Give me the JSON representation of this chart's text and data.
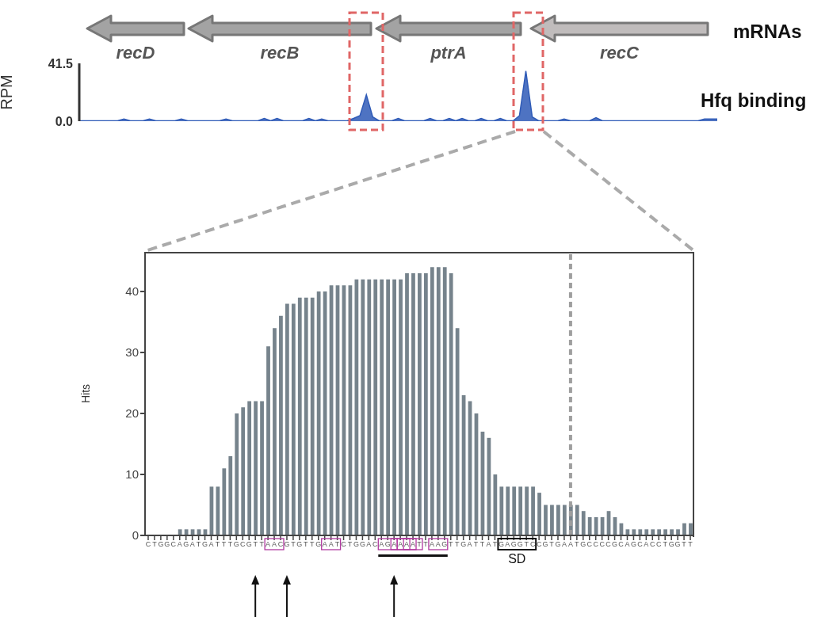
{
  "chart_data": [
    {
      "type": "area",
      "ylabel": "RPM",
      "ylim": [
        0,
        41.5
      ],
      "yticks": [
        {
          "value": 0,
          "label": "0.0"
        },
        41.5
      ],
      "tick_labels": "y",
      "categories": [
        null,
        null,
        null,
        null,
        null,
        null,
        null,
        null,
        null,
        null,
        null,
        null,
        null,
        null,
        null,
        null,
        null,
        null,
        null,
        null,
        null,
        null,
        null,
        null,
        null,
        null,
        null,
        null,
        null,
        null,
        null,
        null,
        null,
        null,
        null,
        null,
        null,
        null,
        null,
        null,
        null,
        null,
        null,
        null,
        null,
        null,
        null,
        null,
        null,
        null,
        null,
        null,
        null,
        null,
        null,
        null,
        null,
        null,
        null,
        null,
        null,
        null,
        null,
        null,
        null,
        null,
        null,
        null,
        null,
        null,
        null,
        null,
        null,
        null,
        null,
        null,
        null,
        null,
        null,
        null,
        null,
        null,
        null,
        null,
        null,
        null,
        null,
        null,
        null,
        null,
        null,
        null,
        null,
        null,
        null,
        null,
        null,
        null,
        null,
        null,
        null
      ],
      "series": [
        {
          "color": "#2f5bb7",
          "values": [
            0.3,
            0.3,
            0.3,
            0.3,
            0.3,
            0.3,
            0.3,
            1.5,
            0.3,
            0.3,
            0.3,
            1.5,
            0.3,
            0.3,
            0.3,
            0.3,
            1.5,
            0.3,
            0.3,
            0.3,
            0.3,
            0.3,
            0.3,
            1.5,
            0.3,
            0.3,
            0.3,
            0.3,
            0.3,
            2,
            0.3,
            2,
            0.3,
            0.3,
            0.3,
            0.3,
            2,
            0.3,
            1.5,
            0.3,
            0.3,
            0.3,
            0.3,
            2,
            4,
            19,
            3,
            0.3,
            0.3,
            0.3,
            2,
            0.3,
            0.3,
            0.3,
            0.3,
            2,
            0.3,
            0.3,
            2,
            0.3,
            2,
            0.3,
            0.3,
            2,
            0.3,
            0.3,
            2,
            0.3,
            0.3,
            4,
            36,
            3,
            0.3,
            0.3,
            0.3,
            0.3,
            1.5,
            0.3,
            0.3,
            0.3,
            0.3,
            2.5,
            0.3,
            0.3,
            0.3,
            0.3,
            0.3,
            0.3,
            0.3,
            0.3,
            0.3,
            0.3,
            0.3,
            0.3,
            0.3,
            0.3,
            0.3,
            0.3,
            1.5,
            1.5,
            1.5
          ]
        }
      ],
      "annotations": [
        "recD",
        "recB",
        "ptrA",
        "recC",
        "mRNAs",
        "Hfq binding"
      ]
    },
    {
      "type": "bar",
      "ylabel": "Hits",
      "color": "#76838c",
      "ylim": [
        0,
        46.5
      ],
      "yticks": [
        0,
        10,
        20,
        30,
        40
      ],
      "categories": [
        "C",
        "T",
        "G",
        "G",
        "C",
        "A",
        "G",
        "A",
        "T",
        "G",
        "A",
        "T",
        "T",
        "T",
        "G",
        "C",
        "G",
        "T",
        "T",
        "A",
        "A",
        "C",
        "G",
        "T",
        "G",
        "T",
        "T",
        "G",
        "A",
        "A",
        "T",
        "C",
        "T",
        "G",
        "G",
        "A",
        "C",
        "A",
        "G",
        "A",
        "A",
        "A",
        "A",
        "T",
        "T",
        "A",
        "A",
        "G",
        "T",
        "T",
        "G",
        "A",
        "T",
        "T",
        "A",
        "T",
        "G",
        "A",
        "G",
        "G",
        "T",
        "C",
        "C",
        "G",
        "T",
        "G",
        "A",
        "A",
        "T",
        "G",
        "C",
        "C",
        "C",
        "C",
        "G",
        "C",
        "A",
        "G",
        "C",
        "A",
        "C",
        "C",
        "T",
        "G",
        "G",
        "T",
        "T"
      ],
      "values": [
        0,
        0,
        0,
        0,
        0,
        1,
        1,
        1,
        1,
        1,
        8,
        8,
        11,
        13,
        20,
        21,
        22,
        22,
        22,
        31,
        34,
        36,
        38,
        38,
        39,
        39,
        39,
        40,
        40,
        41,
        41,
        41,
        41,
        42,
        42,
        42,
        42,
        42,
        42,
        42,
        42,
        43,
        43,
        43,
        43,
        44,
        44,
        44,
        43,
        34,
        23,
        22,
        20,
        17,
        16,
        10,
        8,
        8,
        8,
        8,
        8,
        8,
        7,
        5,
        5,
        5,
        5,
        5,
        5,
        4,
        3,
        3,
        3,
        4,
        3,
        2,
        1,
        1,
        1,
        1,
        1,
        1,
        1,
        1,
        1,
        2,
        2
      ],
      "annotations": [
        "SD"
      ]
    }
  ]
}
